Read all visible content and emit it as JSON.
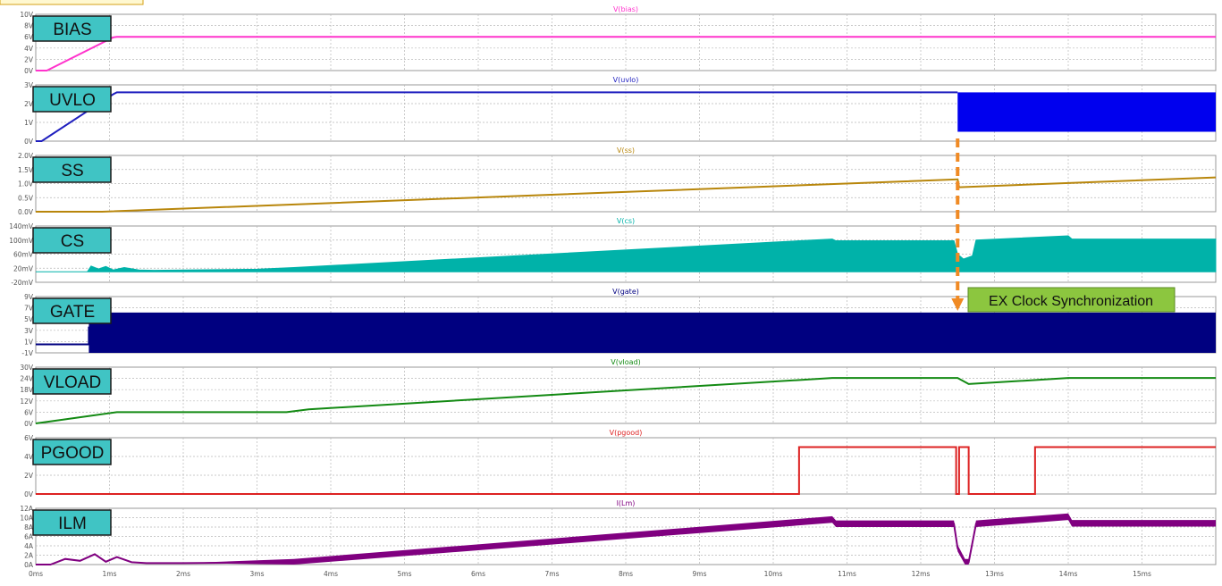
{
  "chart_data": {
    "type": "line",
    "x_unit": "ms",
    "xlim": [
      0,
      16
    ],
    "x_ticks": [
      "0ms",
      "1ms",
      "2ms",
      "3ms",
      "4ms",
      "5ms",
      "6ms",
      "7ms",
      "8ms",
      "9ms",
      "10ms",
      "11ms",
      "12ms",
      "13ms",
      "14ms",
      "15ms"
    ],
    "grid": true,
    "annotation": {
      "text": "EX Clock Synchronization",
      "x": 12.5
    },
    "colors": {
      "label_box": "#40c4c4",
      "annotation_box": "#8cc63f",
      "annotation_arrow": "#f08a24"
    },
    "panels": [
      {
        "label": "BIAS",
        "title": "V(bias)",
        "color": "#ff33cc",
        "ylim": [
          0,
          10
        ],
        "y_ticks": [
          "0V",
          "2V",
          "4V",
          "6V",
          "8V",
          "10V"
        ],
        "x": [
          0,
          0.15,
          1.05,
          1.1,
          16
        ],
        "y": [
          0,
          0,
          5.9,
          6,
          6
        ]
      },
      {
        "label": "UVLO",
        "title": "V(uvlo)",
        "color": "#1f1fbf",
        "ylim": [
          0,
          3
        ],
        "y_ticks": [
          "0V",
          "1V",
          "2V",
          "3V"
        ],
        "x": [
          0,
          0.08,
          1.05,
          1.1,
          12.5
        ],
        "y": [
          0,
          0,
          2.5,
          2.6,
          2.6
        ],
        "band": {
          "x_start": 12.5,
          "x_end": 16,
          "low": 0.5,
          "high": 2.6,
          "color": "#0000ee"
        }
      },
      {
        "label": "SS",
        "title": "V(ss)",
        "color": "#b8860b",
        "ylim": [
          0,
          2
        ],
        "y_ticks": [
          "0.0V",
          "0.5V",
          "1.0V",
          "1.5V",
          "2.0V"
        ],
        "x": [
          0,
          0.9,
          12.5,
          12.52,
          16
        ],
        "y": [
          0,
          0,
          1.15,
          0.87,
          1.22
        ]
      },
      {
        "label": "CS",
        "title": "V(cs)",
        "color": "#00b2a9",
        "ylim": [
          -20,
          140
        ],
        "y_ticks": [
          "-20mV",
          "20mV",
          "60mV",
          "100mV",
          "140mV"
        ],
        "baseline": 10,
        "x": [
          0,
          0.7,
          0.75,
          0.85,
          0.95,
          1.05,
          1.2,
          1.4,
          1.6,
          3.0,
          3.5,
          10.8,
          10.85,
          12.45,
          12.5,
          12.58,
          12.7,
          12.75,
          14.0,
          14.05,
          16
        ],
        "y": [
          10,
          10,
          26,
          18,
          25,
          15,
          22,
          15,
          14,
          17,
          22,
          103,
          98,
          98,
          60,
          46,
          55,
          100,
          112,
          103,
          103
        ]
      },
      {
        "label": "GATE",
        "title": "V(gate)",
        "color": "#000080",
        "ylim": [
          -1,
          9
        ],
        "y_ticks": [
          "-1V",
          "1V",
          "3V",
          "5V",
          "7V",
          "9V"
        ],
        "x": [
          0,
          0.72,
          0.72,
          0.85,
          0.85,
          16
        ],
        "y": [
          0.5,
          0.5,
          3.5,
          3.5,
          6,
          6
        ],
        "band": {
          "x_start": 0.72,
          "x_end": 16,
          "low": -1,
          "high": 6,
          "color": "#000080"
        }
      },
      {
        "label": "VLOAD",
        "title": "V(vload)",
        "color": "#138a13",
        "ylim": [
          0,
          30
        ],
        "y_ticks": [
          "0V",
          "6V",
          "12V",
          "18V",
          "24V",
          "30V"
        ],
        "x": [
          0,
          1.1,
          3.4,
          3.7,
          10.8,
          12.5,
          12.65,
          14.0,
          16
        ],
        "y": [
          0,
          6,
          6,
          7.5,
          24.2,
          24.2,
          21,
          24.2,
          24.2
        ]
      },
      {
        "label": "PGOOD",
        "title": "V(pgood)",
        "color": "#dd2222",
        "ylim": [
          0,
          6
        ],
        "y_ticks": [
          "0V",
          "2V",
          "4V",
          "6V"
        ],
        "x": [
          0,
          10.35,
          10.35,
          12.48,
          12.48,
          12.52,
          12.52,
          12.65,
          12.65,
          13.55,
          13.55,
          16
        ],
        "y": [
          0,
          0,
          5,
          5,
          0,
          0,
          5,
          5,
          0,
          0,
          5,
          5
        ]
      },
      {
        "label": "ILM",
        "title": "I(Lm)",
        "color": "#800080",
        "ylim": [
          0,
          12
        ],
        "y_ticks": [
          "0A",
          "2A",
          "4A",
          "6A",
          "8A",
          "10A",
          "12A"
        ],
        "x": [
          0,
          0.2,
          0.4,
          0.6,
          0.8,
          0.95,
          1.1,
          1.3,
          1.5,
          2,
          3.5,
          10.8,
          10.85,
          12.45,
          12.5,
          12.6,
          12.65,
          12.75,
          14.0,
          14.05,
          16
        ],
        "y": [
          0,
          0,
          1.2,
          0.8,
          2.2,
          0.6,
          1.6,
          0.5,
          0.3,
          0.3,
          0.5,
          9.6,
          8.7,
          8.7,
          3.5,
          0.5,
          0.5,
          8.7,
          10.2,
          8.8,
          8.8
        ],
        "ripple": 0.7
      }
    ]
  }
}
